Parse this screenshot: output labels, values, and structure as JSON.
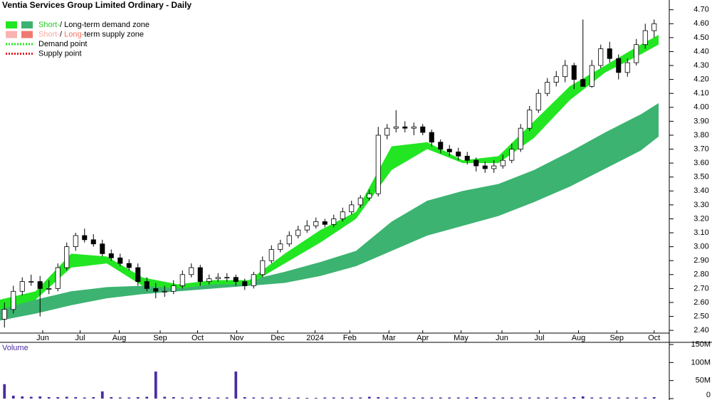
{
  "chart_data": {
    "type": "candlestick",
    "title": "Ventia Services Group Limited Ordinary - Daily",
    "legend": [
      {
        "parts": [
          "Short-",
          "/ ",
          "Long-term demand zone"
        ],
        "colors": [
          "#22e622",
          "#3cb371"
        ],
        "text_colors": [
          "#22cc22",
          "#000000",
          "#000000"
        ]
      },
      {
        "parts": [
          "Short-",
          "/ ",
          "Long-",
          "term supply zone"
        ],
        "colors": [
          "#f8b4b0",
          "#f07a70"
        ],
        "text_colors": [
          "#f8a8a0",
          "#000000",
          "#f07060",
          "#000000"
        ]
      },
      {
        "parts": [
          "Demand point"
        ],
        "colors": [
          "#22e622"
        ],
        "text_colors": [
          "#000000"
        ]
      },
      {
        "parts": [
          "Supply point"
        ],
        "colors": [
          "#e02020"
        ],
        "text_colors": [
          "#000000"
        ]
      }
    ],
    "xlim": [
      0,
      75.2
    ],
    "xticks": [
      {
        "value": 4.8,
        "label": "Jun"
      },
      {
        "value": 9.0,
        "label": "Jul"
      },
      {
        "value": 13.4,
        "label": "Aug"
      },
      {
        "value": 18.0,
        "label": "Sep"
      },
      {
        "value": 22.2,
        "label": "Oct"
      },
      {
        "value": 26.6,
        "label": "Nov"
      },
      {
        "value": 31.2,
        "label": "Dec"
      },
      {
        "value": 35.4,
        "label": "2024"
      },
      {
        "value": 39.3,
        "label": "Feb"
      },
      {
        "value": 43.7,
        "label": "Mar"
      },
      {
        "value": 47.5,
        "label": "Apr"
      },
      {
        "value": 51.8,
        "label": "May"
      },
      {
        "value": 56.4,
        "label": "Jun"
      },
      {
        "value": 60.6,
        "label": "Jul"
      },
      {
        "value": 65.0,
        "label": "Aug"
      },
      {
        "value": 69.3,
        "label": "Sep"
      },
      {
        "value": 73.5,
        "label": "Oct"
      }
    ],
    "ylim": [
      2.37,
      4.77
    ],
    "yticks": [
      {
        "value": 2.4,
        "label": "2.40"
      },
      {
        "value": 2.5,
        "label": "2.50"
      },
      {
        "value": 2.6,
        "label": "2.60"
      },
      {
        "value": 2.7,
        "label": "2.70"
      },
      {
        "value": 2.8,
        "label": "2.80"
      },
      {
        "value": 2.9,
        "label": "2.90"
      },
      {
        "value": 3.0,
        "label": "3.00"
      },
      {
        "value": 3.1,
        "label": "3.10"
      },
      {
        "value": 3.2,
        "label": "3.20"
      },
      {
        "value": 3.3,
        "label": "3.30"
      },
      {
        "value": 3.4,
        "label": "3.40"
      },
      {
        "value": 3.5,
        "label": "3.50"
      },
      {
        "value": 3.6,
        "label": "3.60"
      },
      {
        "value": 3.7,
        "label": "3.70"
      },
      {
        "value": 3.8,
        "label": "3.80"
      },
      {
        "value": 3.9,
        "label": "3.90"
      },
      {
        "value": 4.0,
        "label": "4.00"
      },
      {
        "value": 4.1,
        "label": "4.10"
      },
      {
        "value": 4.2,
        "label": "4.20"
      },
      {
        "value": 4.3,
        "label": "4.30"
      },
      {
        "value": 4.4,
        "label": "4.40"
      },
      {
        "value": 4.5,
        "label": "4.50"
      },
      {
        "value": 4.6,
        "label": "4.60"
      },
      {
        "value": 4.7,
        "label": "4.70"
      }
    ],
    "x": [
      0.5,
      1.5,
      2.5,
      3.5,
      4.5,
      5.5,
      6.5,
      7.5,
      8.5,
      9.5,
      10.5,
      11.5,
      12.5,
      13.5,
      14.5,
      15.5,
      16.5,
      17.5,
      18.5,
      19.5,
      20.5,
      21.5,
      22.5,
      23.5,
      24.5,
      25.5,
      26.5,
      27.5,
      28.5,
      29.5,
      30.5,
      31.5,
      32.5,
      33.5,
      34.5,
      35.5,
      36.5,
      37.5,
      38.5,
      39.5,
      40.5,
      41.5,
      42.5,
      43.5,
      44.5,
      45.5,
      46.5,
      47.5,
      48.5,
      49.5,
      50.5,
      51.5,
      52.5,
      53.5,
      54.5,
      55.5,
      56.5,
      57.5,
      58.5,
      59.5,
      60.5,
      61.5,
      62.5,
      63.5,
      64.5,
      65.5,
      66.5,
      67.5,
      68.5,
      69.5,
      70.5,
      71.5,
      72.5,
      73.5
    ],
    "open": [
      2.48,
      2.55,
      2.68,
      2.75,
      2.75,
      2.7,
      2.7,
      2.85,
      3.0,
      3.08,
      3.05,
      3.02,
      2.95,
      2.92,
      2.88,
      2.85,
      2.75,
      2.7,
      2.68,
      2.68,
      2.72,
      2.8,
      2.85,
      2.75,
      2.77,
      2.78,
      2.78,
      2.75,
      2.72,
      2.8,
      2.9,
      2.98,
      3.02,
      3.08,
      3.12,
      3.15,
      3.18,
      3.16,
      3.2,
      3.25,
      3.3,
      3.35,
      3.38,
      3.8,
      3.85,
      3.86,
      3.85,
      3.86,
      3.82,
      3.75,
      3.7,
      3.68,
      3.65,
      3.62,
      3.58,
      3.56,
      3.58,
      3.62,
      3.7,
      3.85,
      3.98,
      4.1,
      4.18,
      4.22,
      4.3,
      4.2,
      4.15,
      4.3,
      4.42,
      4.35,
      4.25,
      4.32,
      4.45,
      4.55
    ],
    "high": [
      2.6,
      2.72,
      2.78,
      2.8,
      2.79,
      2.76,
      2.88,
      3.03,
      3.1,
      3.13,
      3.09,
      3.05,
      2.98,
      2.95,
      2.91,
      2.88,
      2.78,
      2.74,
      2.72,
      2.76,
      2.83,
      2.88,
      2.87,
      2.8,
      2.81,
      2.81,
      2.8,
      2.77,
      2.82,
      2.93,
      3.01,
      3.05,
      3.11,
      3.15,
      3.19,
      3.21,
      3.2,
      3.23,
      3.28,
      3.33,
      3.37,
      3.41,
      3.86,
      3.88,
      3.98,
      3.9,
      3.89,
      3.88,
      3.84,
      3.77,
      3.73,
      3.71,
      3.68,
      3.64,
      3.61,
      3.62,
      3.66,
      3.74,
      3.88,
      4.01,
      4.13,
      4.21,
      4.26,
      4.34,
      4.32,
      4.63,
      4.34,
      4.45,
      4.47,
      4.38,
      4.35,
      4.49,
      4.6,
      4.63
    ],
    "low": [
      2.42,
      2.52,
      2.65,
      2.72,
      2.5,
      2.66,
      2.68,
      2.83,
      2.97,
      3.03,
      3.0,
      2.93,
      2.9,
      2.86,
      2.83,
      2.72,
      2.68,
      2.63,
      2.64,
      2.66,
      2.7,
      2.78,
      2.72,
      2.73,
      2.75,
      2.75,
      2.72,
      2.69,
      2.7,
      2.78,
      2.88,
      2.96,
      3.0,
      3.06,
      3.1,
      3.13,
      3.14,
      3.14,
      3.18,
      3.23,
      3.28,
      3.33,
      3.36,
      3.77,
      3.82,
      3.82,
      3.8,
      3.8,
      3.72,
      3.67,
      3.65,
      3.62,
      3.59,
      3.54,
      3.53,
      3.53,
      3.56,
      3.6,
      3.68,
      3.83,
      3.96,
      4.08,
      4.15,
      4.18,
      4.13,
      4.15,
      4.14,
      4.28,
      4.32,
      4.2,
      4.22,
      4.3,
      4.42,
      4.5
    ],
    "close": [
      2.55,
      2.68,
      2.75,
      2.75,
      2.7,
      2.7,
      2.85,
      3.0,
      3.08,
      3.05,
      3.02,
      2.95,
      2.92,
      2.88,
      2.85,
      2.75,
      2.7,
      2.68,
      2.68,
      2.72,
      2.8,
      2.85,
      2.75,
      2.77,
      2.78,
      2.78,
      2.75,
      2.72,
      2.8,
      2.9,
      2.98,
      3.02,
      3.08,
      3.12,
      3.15,
      3.18,
      3.16,
      3.2,
      3.25,
      3.3,
      3.35,
      3.38,
      3.8,
      3.85,
      3.86,
      3.85,
      3.86,
      3.82,
      3.75,
      3.7,
      3.68,
      3.65,
      3.62,
      3.58,
      3.56,
      3.58,
      3.62,
      3.7,
      3.85,
      3.98,
      4.1,
      4.18,
      4.22,
      4.3,
      4.2,
      4.15,
      4.3,
      4.42,
      4.35,
      4.25,
      4.32,
      4.45,
      4.55,
      4.6
    ],
    "bands": [
      {
        "name": "Short-term zone",
        "color": "#22e622",
        "x": [
          0,
          4,
          8,
          12,
          16,
          20,
          24,
          28,
          32,
          36,
          40,
          44,
          48,
          52,
          56,
          60,
          64,
          68,
          72,
          74
        ],
        "upper": [
          2.62,
          2.68,
          2.95,
          2.93,
          2.78,
          2.73,
          2.76,
          2.76,
          2.95,
          3.12,
          3.25,
          3.72,
          3.75,
          3.62,
          3.65,
          3.9,
          4.15,
          4.3,
          4.45,
          4.52
        ],
        "lower": [
          2.55,
          2.62,
          2.85,
          2.88,
          2.72,
          2.7,
          2.73,
          2.73,
          2.88,
          3.03,
          3.2,
          3.55,
          3.7,
          3.6,
          3.6,
          3.78,
          4.05,
          4.25,
          4.38,
          4.45
        ]
      },
      {
        "name": "Long-term zone",
        "color": "#3cb371",
        "x": [
          0,
          4,
          8,
          12,
          16,
          20,
          24,
          28,
          32,
          36,
          40,
          44,
          48,
          52,
          56,
          60,
          64,
          68,
          72,
          74
        ],
        "upper": [
          2.58,
          2.62,
          2.68,
          2.71,
          2.72,
          2.73,
          2.74,
          2.76,
          2.82,
          2.89,
          2.97,
          3.18,
          3.33,
          3.4,
          3.45,
          3.55,
          3.68,
          3.82,
          3.95,
          4.03
        ],
        "lower": [
          2.47,
          2.52,
          2.58,
          2.63,
          2.66,
          2.68,
          2.7,
          2.72,
          2.74,
          2.79,
          2.86,
          2.97,
          3.08,
          3.15,
          3.22,
          3.32,
          3.43,
          3.56,
          3.69,
          3.79
        ]
      }
    ],
    "volume": {
      "label": "Volume",
      "color": "#4b2ca0",
      "ylim": [
        0,
        156000000
      ],
      "yticks": [
        0,
        {
          "value": 50000000,
          "label": "50M"
        },
        {
          "value": 100000000,
          "label": "100M"
        },
        {
          "value": 150000000,
          "label": "150M"
        }
      ],
      "values": [
        40000000,
        8000000,
        6000000,
        5000000,
        6000000,
        4000000,
        4000000,
        5000000,
        4000000,
        3000000,
        4000000,
        20000000,
        4000000,
        3000000,
        3000000,
        4000000,
        5000000,
        75000000,
        5000000,
        4000000,
        3000000,
        3000000,
        4000000,
        3000000,
        3000000,
        3000000,
        75000000,
        4000000,
        3000000,
        3000000,
        3000000,
        3000000,
        2000000,
        3000000,
        2000000,
        2000000,
        3000000,
        3000000,
        3000000,
        3000000,
        3000000,
        5000000,
        4000000,
        3000000,
        3000000,
        3000000,
        3000000,
        3000000,
        3000000,
        3000000,
        3000000,
        3000000,
        3000000,
        4000000,
        3000000,
        3000000,
        3000000,
        3000000,
        3000000,
        3000000,
        3000000,
        3000000,
        3000000,
        3000000,
        4000000,
        6000000,
        3000000,
        3000000,
        3000000,
        3000000,
        3000000,
        3000000,
        3000000,
        4000000
      ]
    }
  }
}
